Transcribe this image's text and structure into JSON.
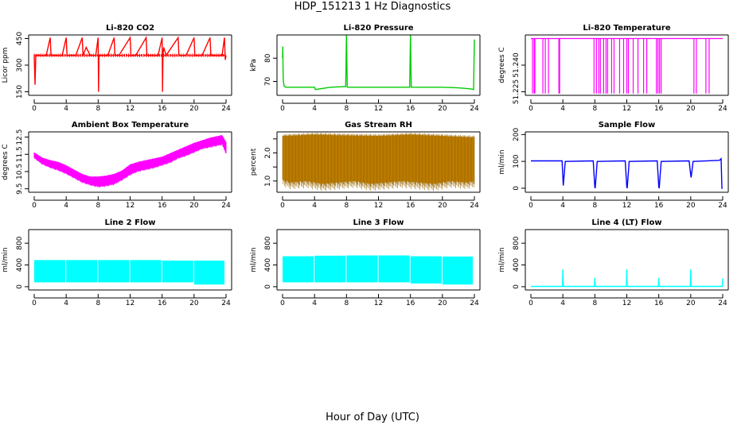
{
  "figure": {
    "title": "HDP_151213  1 Hz Diagnostics",
    "xlabel": "Hour of Day (UTC)",
    "background": "#ffffff"
  },
  "chart_data": [
    {
      "type": "line",
      "title": "Li-820 CO2",
      "ylabel": "Licor ppm",
      "color": "#ff0000",
      "xlim": [
        0,
        24
      ],
      "ylim": [
        130,
        470
      ],
      "xticks": [
        0,
        4,
        8,
        12,
        16,
        20,
        24
      ],
      "yticks": [
        150,
        300,
        450
      ],
      "ytick_labels": [
        "150",
        "300",
        "450"
      ],
      "baseline": 355,
      "series": [
        {
          "x": [
            0,
            0.1,
            0.2,
            0.3,
            0.4,
            0.6,
            1.5,
            2.0,
            2.1,
            2.3,
            3.5,
            4.0,
            4.1,
            4.3,
            5.2,
            6.0,
            6.1,
            6.5,
            7.0,
            7.7,
            8.0,
            8.05,
            8.1,
            8.5,
            9.2,
            10.0,
            10.1,
            10.6,
            12.0,
            12.1,
            12.7,
            14.0,
            14.1,
            15.5,
            16.0,
            16.05,
            16.1,
            16.2,
            16.5,
            18.0,
            18.1,
            19.0,
            20.0,
            20.1,
            21.0,
            22.0,
            22.1,
            23.5,
            23.8,
            23.9,
            24.0
          ],
          "y": [
            355,
            190,
            355,
            355,
            355,
            355,
            355,
            455,
            355,
            355,
            355,
            455,
            355,
            355,
            355,
            455,
            355,
            400,
            355,
            355,
            455,
            150,
            355,
            355,
            355,
            455,
            355,
            355,
            455,
            355,
            355,
            455,
            355,
            355,
            455,
            150,
            355,
            400,
            355,
            455,
            355,
            355,
            455,
            355,
            355,
            455,
            355,
            355,
            455,
            330,
            355
          ]
        }
      ]
    },
    {
      "type": "line",
      "title": "Li-820 Pressure",
      "ylabel": "kPa",
      "color": "#00cc00",
      "xlim": [
        0,
        24
      ],
      "ylim": [
        64,
        90
      ],
      "xticks": [
        0,
        4,
        8,
        12,
        16,
        20,
        24
      ],
      "yticks": [
        70,
        80
      ],
      "ytick_labels": [
        "70",
        "80"
      ],
      "series": [
        {
          "x": [
            0.0,
            0.03,
            0.06,
            0.1,
            0.2,
            0.4,
            2.0,
            4.0,
            4.1,
            6.0,
            7.9,
            8.0,
            8.1,
            10.0,
            12.0,
            14.0,
            15.9,
            16.0,
            16.1,
            18.0,
            20.0,
            22.0,
            23.5,
            23.9,
            24.0
          ],
          "y": [
            80,
            85,
            75,
            70,
            68,
            67.5,
            67.5,
            67.5,
            66.5,
            67.5,
            67.8,
            90,
            67.5,
            67.5,
            67.5,
            67.5,
            67.5,
            90,
            67.5,
            67.5,
            67.5,
            67.2,
            66.8,
            66.5,
            88
          ]
        }
      ]
    },
    {
      "type": "line",
      "title": "Li-820 Temperature",
      "ylabel": "degrees C",
      "color": "#ff00ff",
      "xlim": [
        0,
        24
      ],
      "ylim": [
        51.223,
        51.257
      ],
      "xticks": [
        0,
        4,
        8,
        12,
        16,
        20,
        24
      ],
      "yticks": [
        51.225,
        51.24
      ],
      "ytick_labels": [
        "51.225",
        "51.240"
      ],
      "high": 51.255,
      "low": 51.224,
      "drop_hours": [
        0.2,
        0.4,
        0.5,
        1.5,
        1.8,
        2.2,
        3.5,
        3.6,
        7.9,
        8.2,
        8.5,
        8.7,
        9.1,
        9.4,
        9.6,
        10.1,
        10.4,
        11.1,
        11.6,
        12.0,
        12.2,
        12.8,
        13.4,
        14.1,
        14.5,
        15.7,
        15.9,
        16.1,
        16.3,
        20.4,
        20.7,
        21.9,
        22.3
      ]
    },
    {
      "type": "area",
      "title": "Ambient Box Temperature",
      "ylabel": "degrees C",
      "color": "#ff00ff",
      "xlim": [
        0,
        24
      ],
      "ylim": [
        9.3,
        12.8
      ],
      "xticks": [
        0,
        4,
        8,
        12,
        16,
        20,
        24
      ],
      "yticks": [
        9.5,
        10.5,
        11.5,
        12.5
      ],
      "ytick_labels": [
        "9.5",
        "10.5",
        "11.5",
        "12.5"
      ],
      "series": [
        {
          "name": "upper",
          "x": [
            0,
            1,
            2,
            3,
            4,
            5,
            6,
            7,
            8,
            9,
            10,
            11,
            12,
            13,
            14,
            15,
            16,
            17,
            18,
            19,
            20,
            21,
            22,
            23,
            23.5,
            24
          ],
          "y": [
            11.6,
            11.3,
            11.15,
            11.05,
            10.85,
            10.6,
            10.35,
            10.2,
            10.2,
            10.25,
            10.35,
            10.55,
            10.9,
            11.05,
            11.15,
            11.25,
            11.35,
            11.55,
            11.75,
            11.95,
            12.15,
            12.3,
            12.45,
            12.55,
            12.6,
            12.2
          ]
        },
        {
          "name": "lower",
          "x": [
            0,
            1,
            2,
            3,
            4,
            5,
            6,
            7,
            8,
            9,
            10,
            11,
            12,
            13,
            14,
            15,
            16,
            17,
            18,
            19,
            20,
            21,
            22,
            23,
            23.5,
            24
          ],
          "y": [
            11.3,
            10.95,
            10.75,
            10.6,
            10.4,
            10.15,
            9.9,
            9.75,
            9.65,
            9.7,
            9.8,
            10.05,
            10.35,
            10.55,
            10.65,
            10.75,
            10.9,
            11.05,
            11.3,
            11.45,
            11.65,
            11.85,
            11.95,
            12.05,
            12.1,
            11.6
          ]
        }
      ]
    },
    {
      "type": "area",
      "title": "Gas Stream RH",
      "ylabel": "percent",
      "color": "#ffa500",
      "color2": "#996600",
      "xlim": [
        0,
        24
      ],
      "ylim": [
        0.6,
        2.75
      ],
      "xticks": [
        0,
        4,
        8,
        12,
        16,
        20,
        24
      ],
      "yticks": [
        1.0,
        1.5,
        2.0,
        2.5
      ],
      "ytick_labels": [
        "1.0",
        "",
        "2.0",
        ""
      ],
      "series": [
        {
          "name": "upper",
          "x": [
            0,
            4,
            8,
            12,
            16,
            20,
            24
          ],
          "y": [
            2.6,
            2.65,
            2.62,
            2.6,
            2.65,
            2.6,
            2.55
          ]
        },
        {
          "name": "lower",
          "x": [
            0,
            1,
            3,
            5,
            7,
            9,
            11,
            13,
            15,
            17,
            19,
            21,
            23,
            24
          ],
          "y": [
            1.05,
            0.95,
            1.0,
            0.9,
            0.95,
            1.0,
            0.9,
            0.95,
            1.0,
            0.95,
            0.9,
            1.0,
            0.95,
            1.0
          ]
        }
      ]
    },
    {
      "type": "line",
      "title": "Sample Flow",
      "ylabel": "ml/min",
      "color": "#0000ff",
      "xlim": [
        0,
        24
      ],
      "ylim": [
        -15,
        210
      ],
      "xticks": [
        0,
        4,
        8,
        12,
        16,
        20,
        24
      ],
      "yticks": [
        0,
        100,
        200
      ],
      "ytick_labels": [
        "0",
        "100",
        "200"
      ],
      "series": [
        {
          "x": [
            0,
            3.9,
            4.0,
            4.05,
            4.3,
            7.8,
            8.0,
            8.05,
            8.3,
            11.8,
            12.0,
            12.05,
            12.3,
            15.8,
            16.0,
            16.05,
            16.3,
            19.8,
            20.0,
            20.05,
            20.3,
            23.6,
            23.8,
            23.9,
            24.0
          ],
          "y": [
            102,
            102,
            40,
            10,
            100,
            102,
            5,
            0,
            100,
            102,
            5,
            0,
            100,
            102,
            5,
            0,
            100,
            102,
            50,
            40,
            100,
            104,
            110,
            0,
            0
          ]
        }
      ]
    },
    {
      "type": "area",
      "title": "Line 2 Flow",
      "ylabel": "ml/min",
      "color": "#00ffff",
      "xlim": [
        0,
        24
      ],
      "ylim": [
        -60,
        1050
      ],
      "xticks": [
        0,
        4,
        8,
        12,
        16,
        20,
        24
      ],
      "yticks": [
        0,
        400,
        800
      ],
      "ytick_labels": [
        "0",
        "400",
        "800"
      ],
      "band": [
        {
          "from": 0,
          "to": 4,
          "low": 80,
          "high": 490
        },
        {
          "from": 4,
          "to": 8,
          "low": 80,
          "high": 490
        },
        {
          "from": 8,
          "to": 12,
          "low": 80,
          "high": 490
        },
        {
          "from": 12,
          "to": 16,
          "low": 80,
          "high": 490
        },
        {
          "from": 16,
          "to": 20,
          "low": 80,
          "high": 480
        },
        {
          "from": 20,
          "to": 23.9,
          "low": 40,
          "high": 480
        }
      ]
    },
    {
      "type": "area",
      "title": "Line 3 Flow",
      "ylabel": "ml/min",
      "color": "#00ffff",
      "xlim": [
        0,
        24
      ],
      "ylim": [
        -60,
        1050
      ],
      "xticks": [
        0,
        4,
        8,
        12,
        16,
        20,
        24
      ],
      "yticks": [
        0,
        400,
        800
      ],
      "ytick_labels": [
        "0",
        "400",
        "800"
      ],
      "band": [
        {
          "from": 0,
          "to": 4,
          "low": 80,
          "high": 560
        },
        {
          "from": 4,
          "to": 8,
          "low": 80,
          "high": 570
        },
        {
          "from": 8,
          "to": 12,
          "low": 80,
          "high": 575
        },
        {
          "from": 12,
          "to": 16,
          "low": 80,
          "high": 575
        },
        {
          "from": 16,
          "to": 20,
          "low": 60,
          "high": 560
        },
        {
          "from": 20,
          "to": 23.9,
          "low": 40,
          "high": 555
        }
      ]
    },
    {
      "type": "line",
      "title": "Line 4 (LT) Flow",
      "ylabel": "ml/min",
      "color": "#00ffff",
      "xlim": [
        0,
        24
      ],
      "ylim": [
        -60,
        1050
      ],
      "xticks": [
        0,
        4,
        8,
        12,
        16,
        20,
        24
      ],
      "yticks": [
        0,
        400,
        800
      ],
      "ytick_labels": [
        "0",
        "400",
        "800"
      ],
      "series": [
        {
          "x": [
            0,
            3.95,
            4.0,
            4.05,
            7.95,
            8.0,
            8.05,
            11.95,
            12.0,
            12.05,
            15.95,
            16.0,
            16.05,
            19.95,
            20.0,
            20.05,
            23.95,
            24.0
          ],
          "y": [
            5,
            5,
            320,
            5,
            5,
            160,
            5,
            5,
            320,
            5,
            5,
            160,
            5,
            5,
            320,
            5,
            5,
            150
          ]
        }
      ]
    }
  ]
}
